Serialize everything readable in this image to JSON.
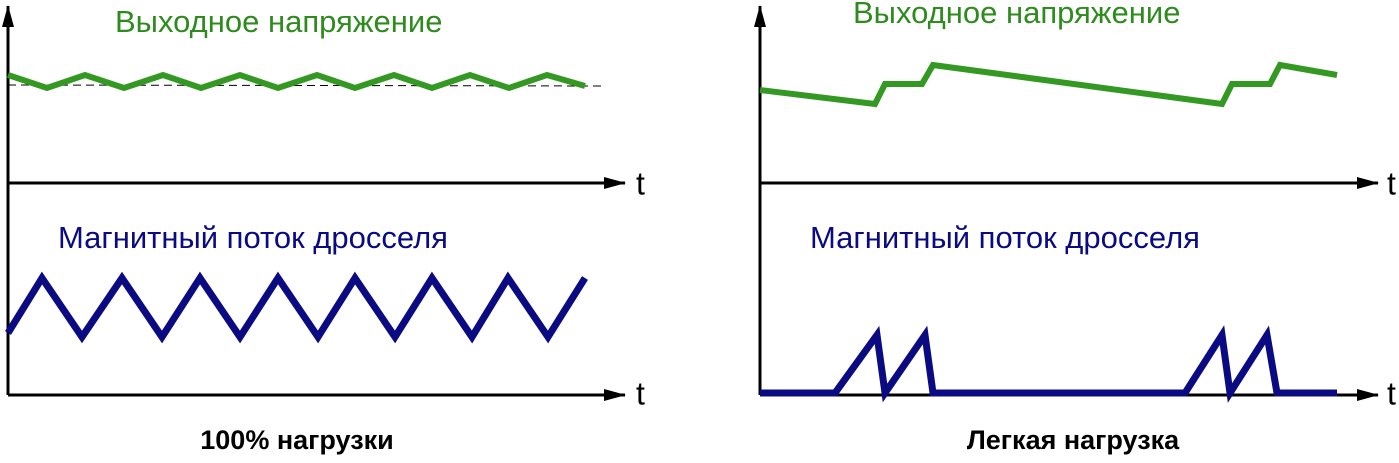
{
  "panels": [
    {
      "voltage_label": "Выходное напряжение",
      "flux_label": "Магнитный поток дросселя",
      "top_axis_label": "t",
      "bottom_axis_label": "t",
      "caption": "100% нагрузки"
    },
    {
      "voltage_label": "Выходное напряжение",
      "flux_label": "Магнитный поток дросселя",
      "top_axis_label": "t",
      "bottom_axis_label": "t",
      "caption": "Легкая нагрузка"
    }
  ]
}
